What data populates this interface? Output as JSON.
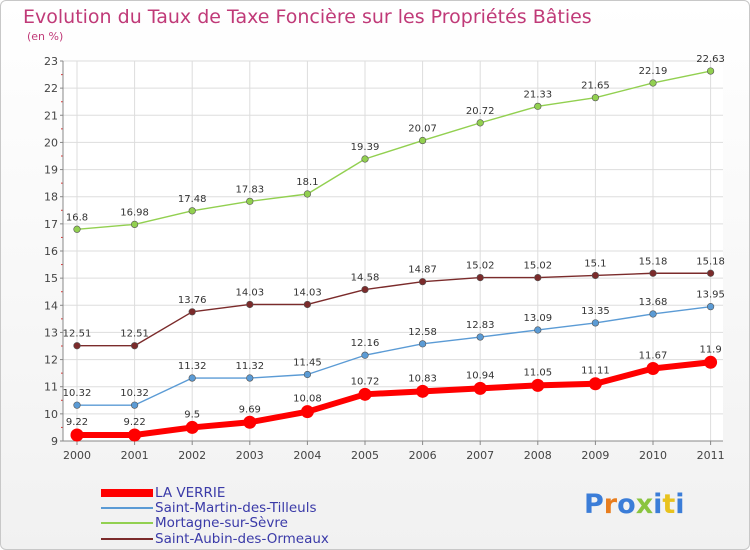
{
  "title": "Evolution du Taux de Taxe Foncière sur les Propriétés Bâties",
  "unit_label": "(en %)",
  "logo": "Proxiti",
  "chart_data": {
    "type": "line",
    "x": [
      "2000",
      "2001",
      "2002",
      "2003",
      "2004",
      "2005",
      "2006",
      "2007",
      "2008",
      "2009",
      "2010",
      "2011"
    ],
    "ylim": [
      9,
      23
    ],
    "yticks": [
      "9",
      "10",
      "11",
      "12",
      "13",
      "14",
      "15",
      "16",
      "17",
      "18",
      "19",
      "20",
      "21",
      "22",
      "23"
    ],
    "grid": true,
    "legend_position": "bottom-left",
    "series": [
      {
        "name": "LA VERRIE",
        "color": "#ff0000",
        "labels": [
          "9.22",
          "9.22",
          "9.5",
          "9.69",
          "10.08",
          "10.72",
          "10.83",
          "10.94",
          "11.05",
          "11.11",
          "11.67",
          "11.9"
        ],
        "values": [
          9.22,
          9.22,
          9.5,
          9.69,
          10.08,
          10.72,
          10.83,
          10.94,
          11.05,
          11.11,
          11.67,
          11.9
        ]
      },
      {
        "name": "Saint-Martin-des-Tilleuls",
        "color": "#5b9bd5",
        "labels": [
          "10.32",
          "10.32",
          "11.32",
          "11.32",
          "11.45",
          "12.16",
          "12.58",
          "12.83",
          "13.09",
          "13.35",
          "13.68",
          "13.95"
        ],
        "values": [
          10.32,
          10.32,
          11.32,
          11.32,
          11.45,
          12.16,
          12.58,
          12.83,
          13.09,
          13.35,
          13.68,
          13.95
        ]
      },
      {
        "name": "Mortagne-sur-Sèvre",
        "color": "#92d050",
        "labels": [
          "16.8",
          "16.98",
          "17.48",
          "17.83",
          "18.1",
          "19.39",
          "20.07",
          "20.72",
          "21.33",
          "21.65",
          "22.19",
          "22.63"
        ],
        "values": [
          16.8,
          16.98,
          17.48,
          17.83,
          18.1,
          19.39,
          20.07,
          20.72,
          21.33,
          21.65,
          22.19,
          22.63
        ]
      },
      {
        "name": "Saint-Aubin-des-Ormeaux",
        "color": "#7b2b2b",
        "labels": [
          "12.51",
          "12.51",
          "13.76",
          "14.03",
          "14.03",
          "14.58",
          "14.87",
          "15.02",
          "15.02",
          "15.1",
          "15.18",
          "15.18"
        ],
        "values": [
          12.51,
          12.51,
          13.76,
          14.03,
          14.03,
          14.58,
          14.87,
          15.02,
          15.02,
          15.1,
          15.18,
          15.18
        ]
      }
    ]
  }
}
